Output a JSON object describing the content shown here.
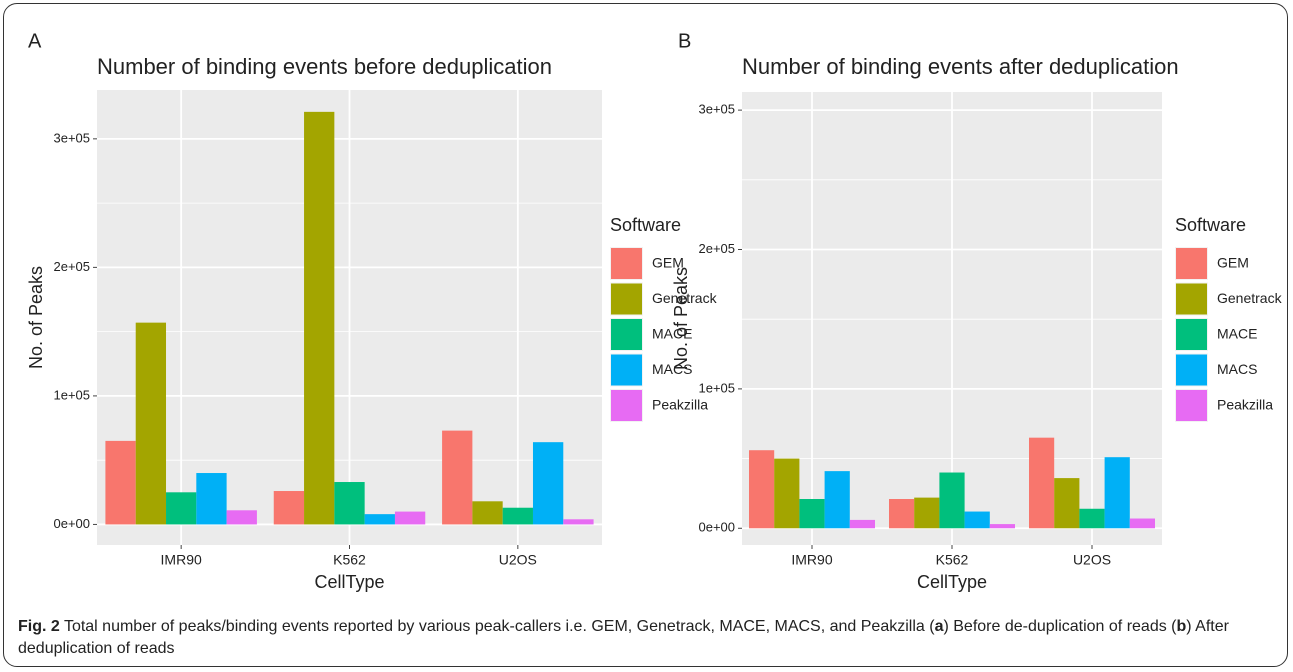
{
  "chart_data": [
    {
      "type": "bar",
      "panel_label": "A",
      "title": "Number of binding events before deduplication",
      "x_label": "CellType",
      "y_label": "No. of Peaks",
      "legend_title": "Software",
      "categories": [
        "IMR90",
        "K562",
        "U2OS"
      ],
      "series": [
        {
          "name": "GEM",
          "color": "#F8766D",
          "values": [
            65000,
            26000,
            73000
          ]
        },
        {
          "name": "Genetrack",
          "color": "#A3A500",
          "values": [
            157000,
            321000,
            18000
          ]
        },
        {
          "name": "MACE",
          "color": "#00BF7D",
          "values": [
            25000,
            33000,
            13000
          ]
        },
        {
          "name": "MACS",
          "color": "#00B0F6",
          "values": [
            40000,
            8000,
            64000
          ]
        },
        {
          "name": "Peakzilla",
          "color": "#E76BF3",
          "values": [
            11000,
            10000,
            4000
          ]
        }
      ],
      "ylim": [
        -16000,
        338000
      ],
      "yticks": [
        {
          "value": 0,
          "label": "0e+00"
        },
        {
          "value": 100000,
          "label": "1e+05"
        },
        {
          "value": 200000,
          "label": "2e+05"
        },
        {
          "value": 300000,
          "label": "3e+05"
        }
      ],
      "minor_yticks": [
        50000,
        150000,
        250000
      ],
      "grid": true
    },
    {
      "type": "bar",
      "panel_label": "B",
      "title": "Number of binding events after deduplication",
      "x_label": "CellType",
      "y_label": "No. of Peaks",
      "legend_title": "Software",
      "categories": [
        "IMR90",
        "K562",
        "U2OS"
      ],
      "series": [
        {
          "name": "GEM",
          "color": "#F8766D",
          "values": [
            56000,
            21000,
            65000
          ]
        },
        {
          "name": "Genetrack",
          "color": "#A3A500",
          "values": [
            50000,
            22000,
            36000
          ]
        },
        {
          "name": "MACE",
          "color": "#00BF7D",
          "values": [
            21000,
            40000,
            14000
          ]
        },
        {
          "name": "MACS",
          "color": "#00B0F6",
          "values": [
            41000,
            12000,
            51000
          ]
        },
        {
          "name": "Peakzilla",
          "color": "#E76BF3",
          "values": [
            6000,
            3000,
            7000
          ]
        }
      ],
      "ylim": [
        -12000,
        313000
      ],
      "yticks": [
        {
          "value": 0,
          "label": "0e+00"
        },
        {
          "value": 100000,
          "label": "1e+05"
        },
        {
          "value": 200000,
          "label": "2e+05"
        },
        {
          "value": 300000,
          "label": "3e+05"
        }
      ],
      "minor_yticks": [
        50000,
        150000,
        250000
      ],
      "grid": true
    }
  ],
  "caption": [
    {
      "text": "Fig. 2",
      "bold": true
    },
    {
      "text": " Total number of peaks/binding events reported by various peak-callers i.e. GEM, Genetrack, MACE, MACS, and Peakzilla ("
    },
    {
      "text": "a",
      "bold": true
    },
    {
      "text": ") Before de-duplication of reads ("
    },
    {
      "text": "b",
      "bold": true
    },
    {
      "text": ") After deduplication of reads"
    }
  ]
}
